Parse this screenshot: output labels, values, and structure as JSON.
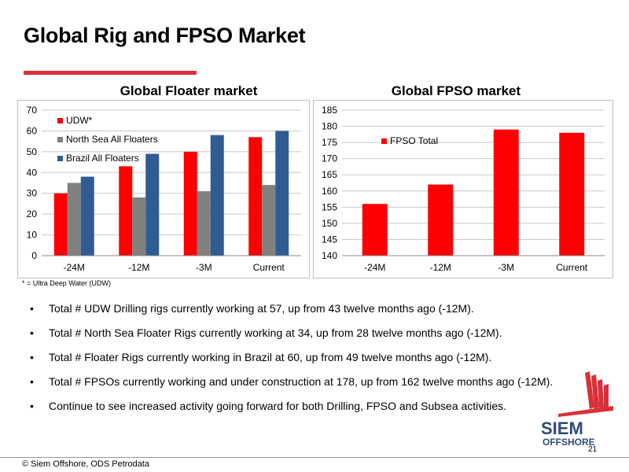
{
  "slide": {
    "title": "Global Rig and FPSO Market",
    "footnote": "* = Ultra Deep Water (UDW)",
    "bullets": [
      "Total # UDW Drilling rigs currently working at 57, up from 43 twelve months ago (-12M).",
      "Total # North Sea Floater Rigs currently working at 34, up from 28 twelve months ago (-12M).",
      "Total # Floater Rigs currently working in Brazil at 60, up from 49 twelve months ago (-12M).",
      "Total # FPSOs currently working and under construction at 178, up from 162 twelve months ago (-12M).",
      "Continue to see increased activity going forward for both Drilling, FPSO and Subsea activities."
    ],
    "page_number": "21",
    "source": "© Siem Offshore, ODS Petrodata",
    "logo": {
      "line1": "SIEM",
      "line2": "OFFSHORE"
    },
    "accent_color": "#d8303a"
  },
  "chart_data": [
    {
      "type": "bar",
      "title": "Global Floater market",
      "categories": [
        "-24M",
        "-12M",
        "-3M",
        "Current"
      ],
      "series": [
        {
          "name": "UDW*",
          "values": [
            30,
            43,
            50,
            57
          ],
          "color": "#ff0000"
        },
        {
          "name": "North Sea All Floaters",
          "values": [
            35,
            28,
            31,
            34
          ],
          "color": "#808080"
        },
        {
          "name": "Brazil All Floaters",
          "values": [
            38,
            49,
            58,
            60
          ],
          "color": "#2f5c93"
        }
      ],
      "ylim": [
        0,
        70
      ],
      "yticks": [
        0,
        10,
        20,
        30,
        40,
        50,
        60,
        70
      ],
      "grid": true,
      "legend": "top-left"
    },
    {
      "type": "bar",
      "title": "Global FPSO market",
      "categories": [
        "-24M",
        "-12M",
        "-3M",
        "Current"
      ],
      "series": [
        {
          "name": "FPSO Total",
          "values": [
            156,
            162,
            179,
            178
          ],
          "color": "#ff0000"
        }
      ],
      "ylim": [
        140,
        185
      ],
      "yticks": [
        140,
        145,
        150,
        155,
        160,
        165,
        170,
        175,
        180,
        185
      ],
      "grid": true,
      "legend": "top-left"
    }
  ]
}
